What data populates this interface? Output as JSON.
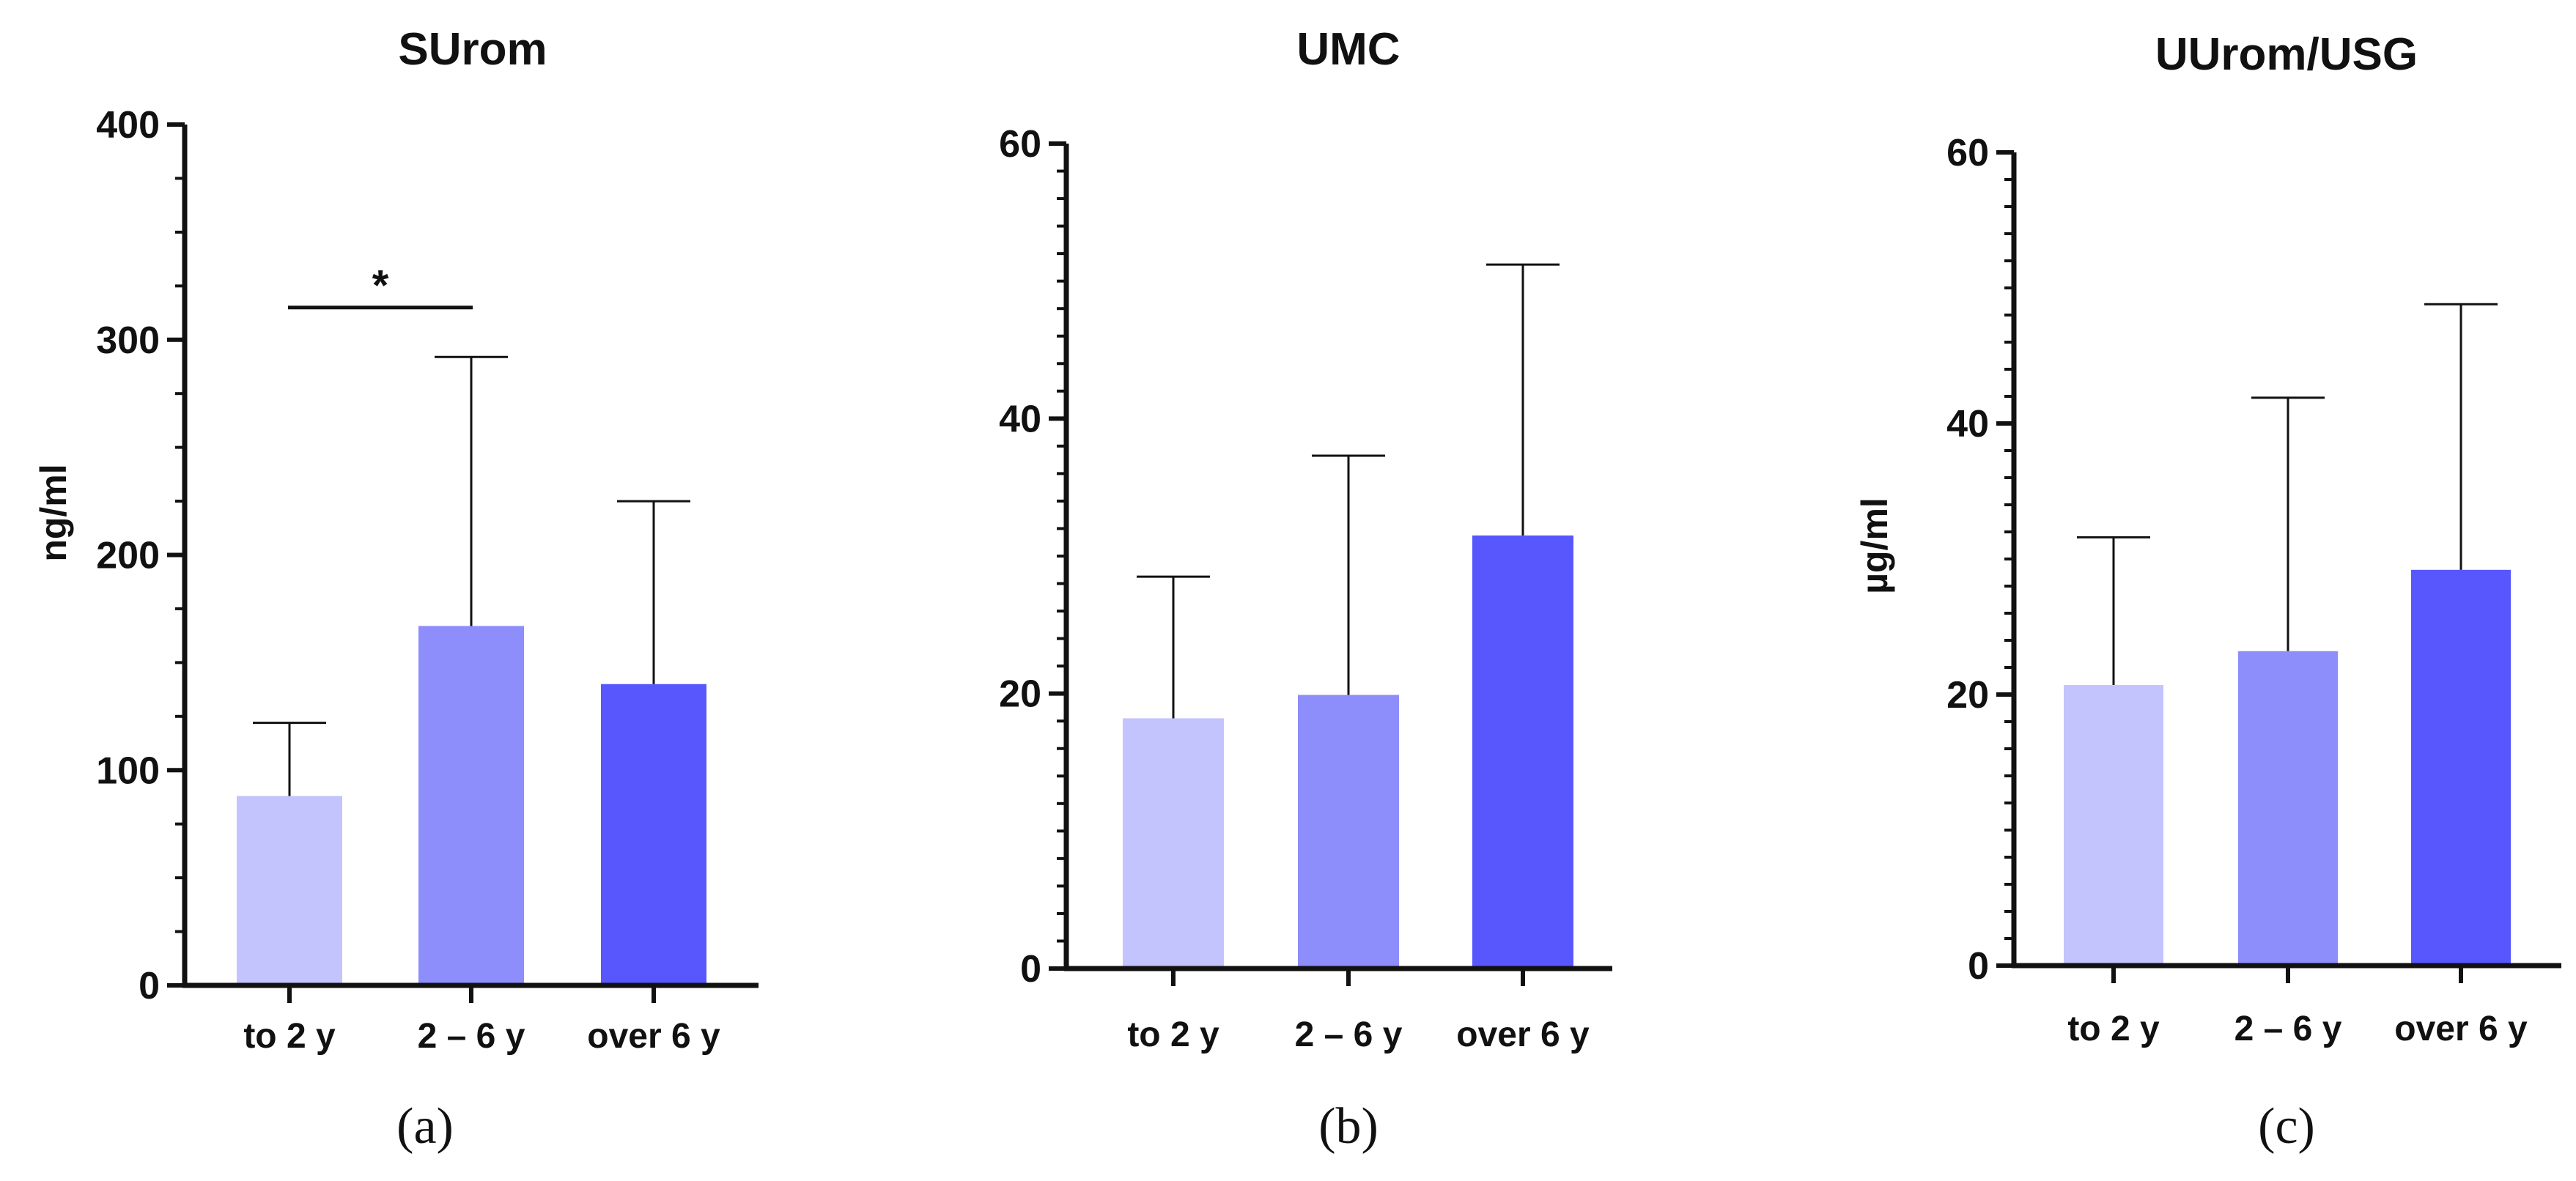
{
  "chart_data": [
    {
      "type": "bar",
      "panel_label": "(a)",
      "title": "SUrom",
      "ylabel": "ng/ml",
      "xlabel": "",
      "ylim": [
        0,
        400
      ],
      "yticks": [
        "0",
        "100",
        "200",
        "300",
        "400"
      ],
      "categories": [
        "to 2 y",
        "2 – 6 y",
        "over 6 y"
      ],
      "values": [
        88,
        167,
        140
      ],
      "error_upper": [
        122,
        292,
        225
      ],
      "colors": [
        "#c3c3fd",
        "#8d8dfc",
        "#5757fd"
      ],
      "annotation": {
        "text": "*",
        "from_category": 0,
        "to_category": 1,
        "y": 315
      }
    },
    {
      "type": "bar",
      "panel_label": "(b)",
      "title": "UMC",
      "ylabel": "",
      "xlabel": "",
      "ylim": [
        0,
        60
      ],
      "yticks": [
        "0",
        "20",
        "40",
        "60"
      ],
      "categories": [
        "to 2 y",
        "2 – 6 y",
        "over 6 y"
      ],
      "values": [
        18.2,
        19.9,
        31.5
      ],
      "error_upper": [
        28.5,
        37.3,
        51.2
      ],
      "colors": [
        "#c3c3fd",
        "#8d8dfc",
        "#5757fd"
      ]
    },
    {
      "type": "bar",
      "panel_label": "(c)",
      "title": "UUrom/USG",
      "ylabel": "µg/ml",
      "xlabel": "",
      "ylim": [
        0,
        60
      ],
      "yticks": [
        "0",
        "20",
        "40",
        "60"
      ],
      "categories": [
        "to 2 y",
        "2 – 6 y",
        "over 6 y"
      ],
      "values": [
        20.7,
        23.2,
        29.2
      ],
      "error_upper": [
        31.6,
        41.9,
        48.8
      ],
      "colors": [
        "#c3c3fd",
        "#8d8dfc",
        "#5757fd"
      ]
    }
  ]
}
